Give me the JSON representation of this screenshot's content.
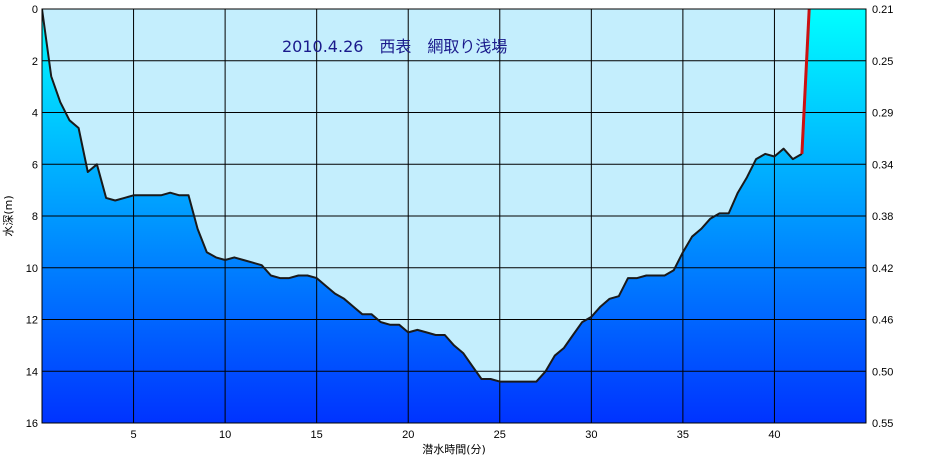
{
  "chart_data": {
    "type": "area",
    "title": "2010.4.26　西表　網取り浅場",
    "xlabel": "潜水時間(分)",
    "ylabel": "水深(m)",
    "xlim": [
      0,
      45
    ],
    "ylim": [
      0,
      16
    ],
    "y_inverted": true,
    "x_ticks": [
      5,
      10,
      15,
      20,
      25,
      30,
      35,
      40
    ],
    "y_ticks": [
      0,
      2,
      4,
      6,
      8,
      10,
      12,
      14,
      16
    ],
    "y2_ticks": [
      "0.21",
      "0.25",
      "0.29",
      "0.34",
      "0.38",
      "0.42",
      "0.46",
      "0.50",
      "0.55"
    ],
    "grid": true,
    "colors": {
      "surface_fill": "#c4eefd",
      "water_top": "#00ffff",
      "water_bottom": "#0033ff",
      "profile_line": "#1a1a1a",
      "ascent_line": "#cc1111",
      "title_color": "#1a1a8c"
    },
    "series": [
      {
        "x": [
          0,
          0.5,
          1,
          1.5,
          2,
          2.5,
          3,
          3.5,
          4,
          4.5,
          5,
          5.5,
          6,
          6.5,
          7,
          7.5,
          8,
          8.5,
          9,
          9.5,
          10,
          10.5,
          11,
          11.5,
          12,
          12.5,
          13,
          13.5,
          14,
          14.5,
          15,
          15.5,
          16,
          16.5,
          17,
          17.5,
          18,
          18.5,
          19,
          19.5,
          20,
          20.5,
          21,
          21.5,
          22,
          22.5,
          23,
          23.5,
          24,
          24.5,
          25,
          25.5,
          26,
          26.5,
          27,
          27.5,
          28,
          28.5,
          29,
          29.5,
          30,
          30.5,
          31,
          31.5,
          32,
          32.5,
          33,
          33.5,
          34,
          34.5,
          35,
          35.5,
          36,
          36.5,
          37,
          37.5,
          38,
          38.5,
          39,
          39.5,
          40,
          40.5,
          41,
          41.5
        ],
        "values": [
          0,
          2.6,
          3.6,
          4.3,
          4.6,
          6.3,
          6.0,
          7.3,
          7.4,
          7.3,
          7.2,
          7.2,
          7.2,
          7.2,
          7.1,
          7.2,
          7.2,
          8.5,
          9.4,
          9.6,
          9.7,
          9.6,
          9.7,
          9.8,
          9.9,
          10.3,
          10.4,
          10.4,
          10.3,
          10.3,
          10.4,
          10.7,
          11.0,
          11.2,
          11.5,
          11.8,
          11.8,
          12.1,
          12.2,
          12.2,
          12.5,
          12.4,
          12.5,
          12.6,
          12.6,
          13.0,
          13.3,
          13.8,
          14.3,
          14.3,
          14.4,
          14.4,
          14.4,
          14.4,
          14.4,
          14.0,
          13.4,
          13.1,
          12.6,
          12.1,
          11.9,
          11.5,
          11.2,
          11.1,
          10.4,
          10.4,
          10.3,
          10.3,
          10.3,
          10.1,
          9.4,
          8.8,
          8.5,
          8.1,
          7.9,
          7.9,
          7.1,
          6.5,
          5.8,
          5.6,
          5.7,
          5.4,
          5.8,
          5.6
        ]
      },
      {
        "x": [
          41.5,
          41.9
        ],
        "values": [
          5.6,
          0
        ]
      }
    ]
  }
}
